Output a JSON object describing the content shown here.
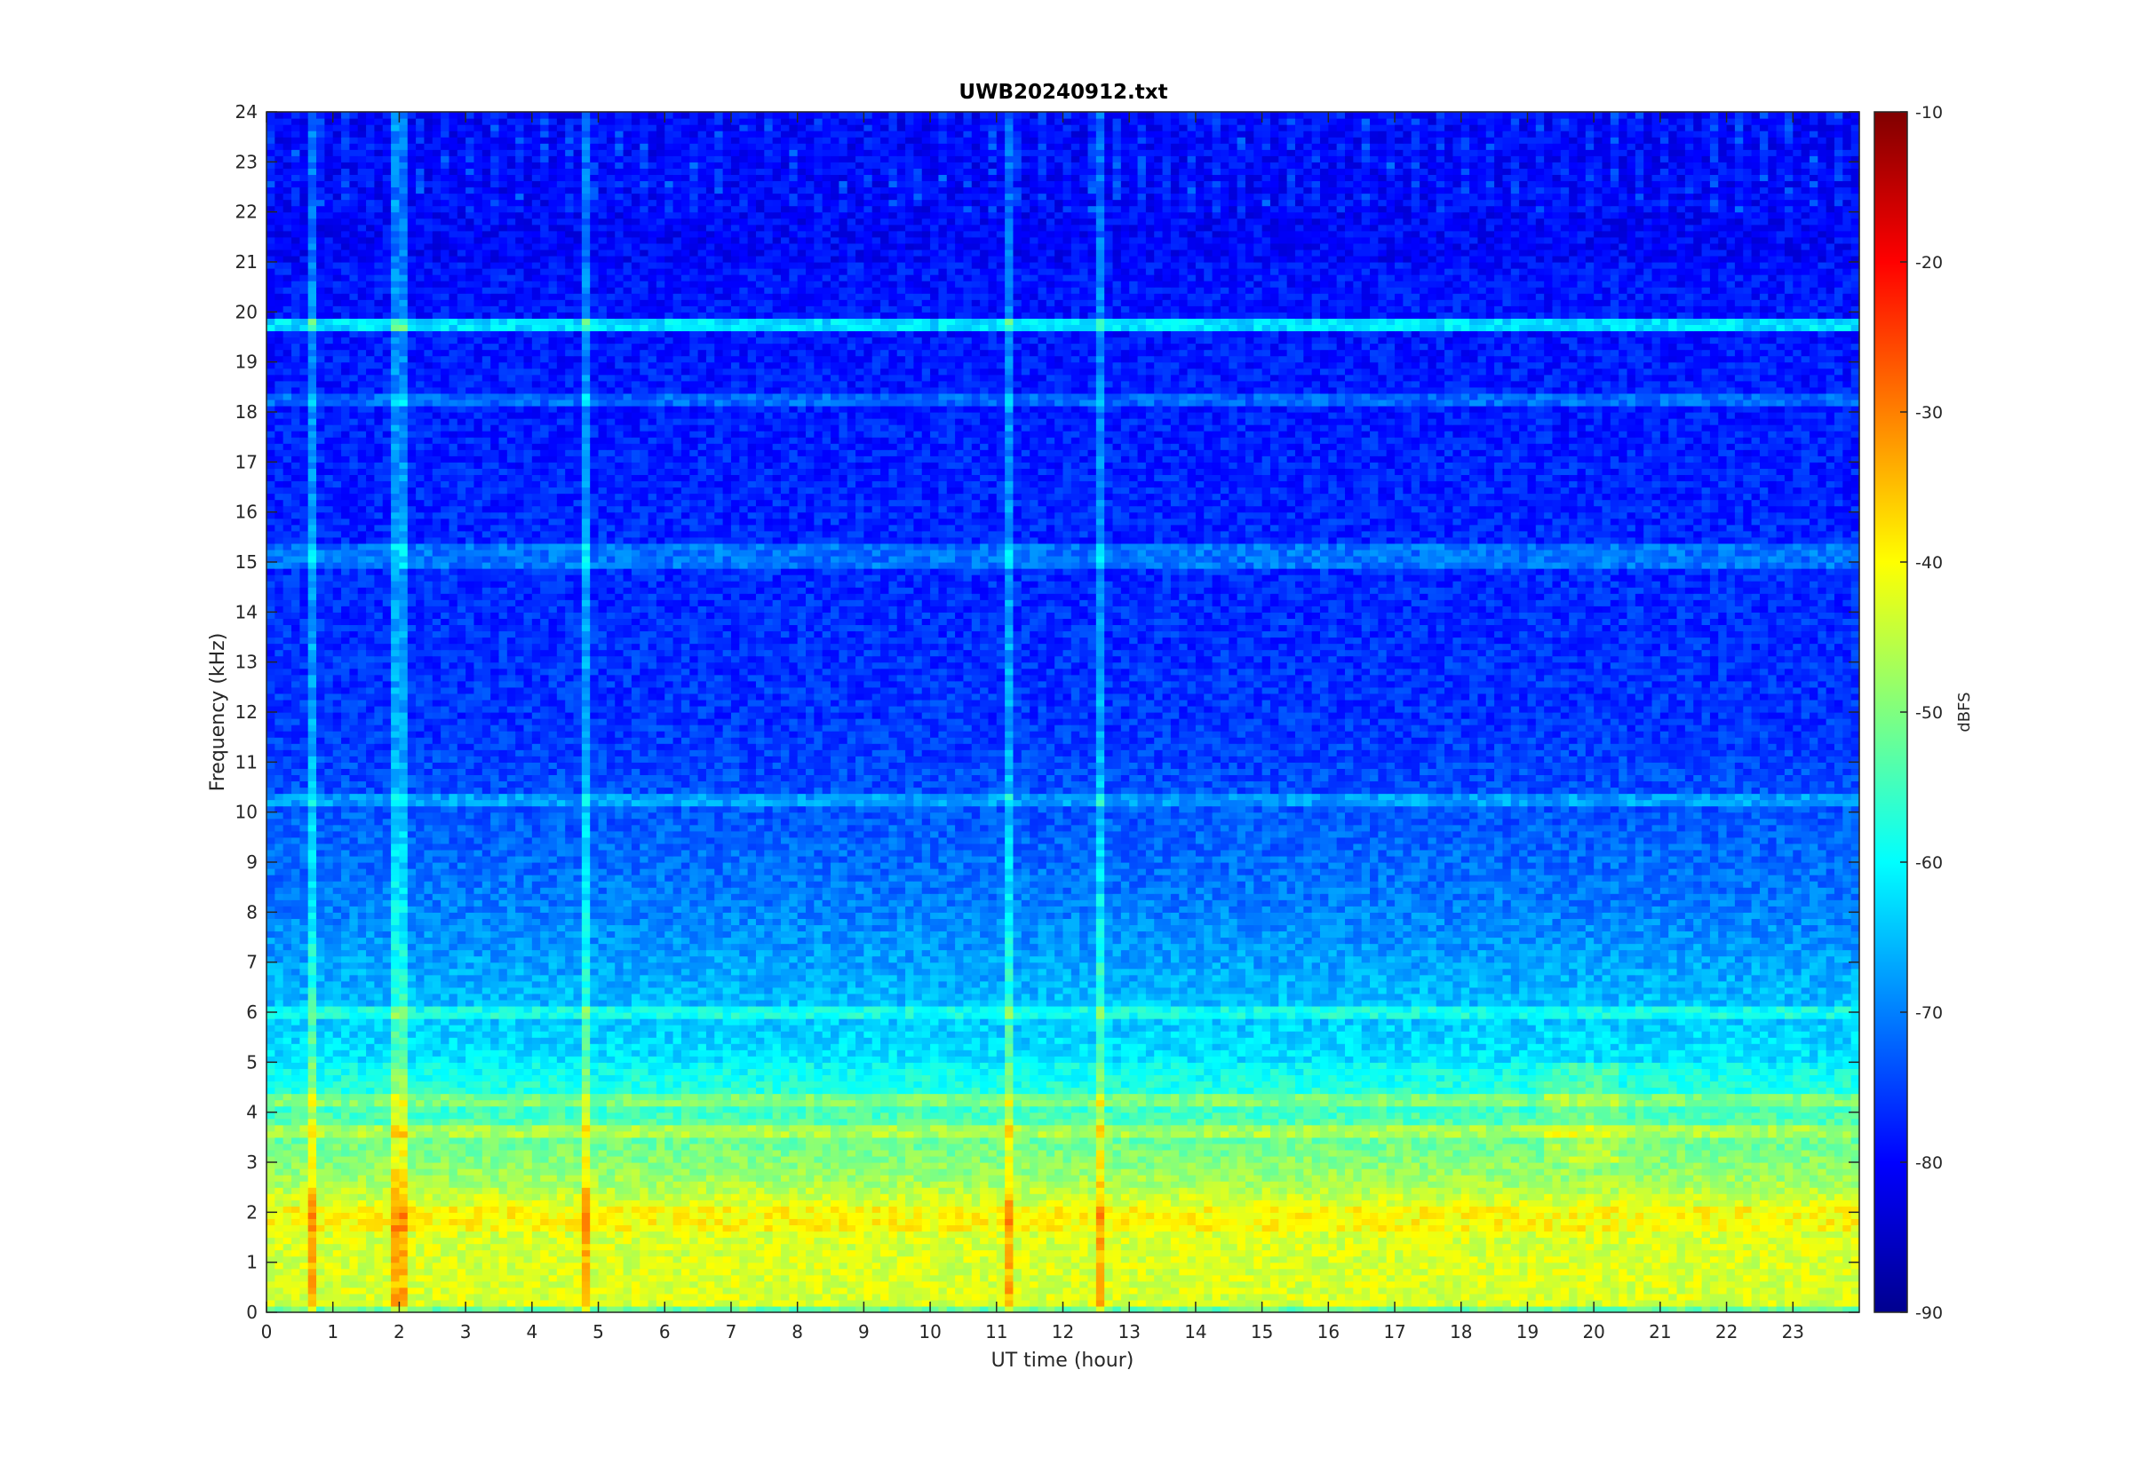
{
  "chart_data": {
    "type": "heatmap",
    "title": "UWB20240912.txt",
    "xlabel": "UT time (hour)",
    "ylabel": "Frequency (kHz)",
    "xlim": [
      0,
      24
    ],
    "ylim": [
      0,
      24
    ],
    "x_ticks": [
      0,
      1,
      2,
      3,
      4,
      5,
      6,
      7,
      8,
      9,
      10,
      11,
      12,
      13,
      14,
      15,
      16,
      17,
      18,
      19,
      20,
      21,
      22,
      23
    ],
    "y_ticks": [
      0,
      1,
      2,
      3,
      4,
      5,
      6,
      7,
      8,
      9,
      10,
      11,
      12,
      13,
      14,
      15,
      16,
      17,
      18,
      19,
      20,
      21,
      22,
      23,
      24
    ],
    "colorbar": {
      "label": "dBFS",
      "range": [
        -90,
        -10
      ],
      "ticks": [
        -90,
        -80,
        -70,
        -60,
        -50,
        -40,
        -30,
        -20,
        -10
      ],
      "colormap": "jet"
    },
    "features": {
      "strong_bands_khz": [
        19.8,
        18.3,
        15.3,
        15.0,
        10.2,
        6.0,
        4.2,
        3.6
      ],
      "dropout_hours": [
        0.7,
        2.0,
        4.8,
        11.2,
        12.6
      ]
    }
  }
}
